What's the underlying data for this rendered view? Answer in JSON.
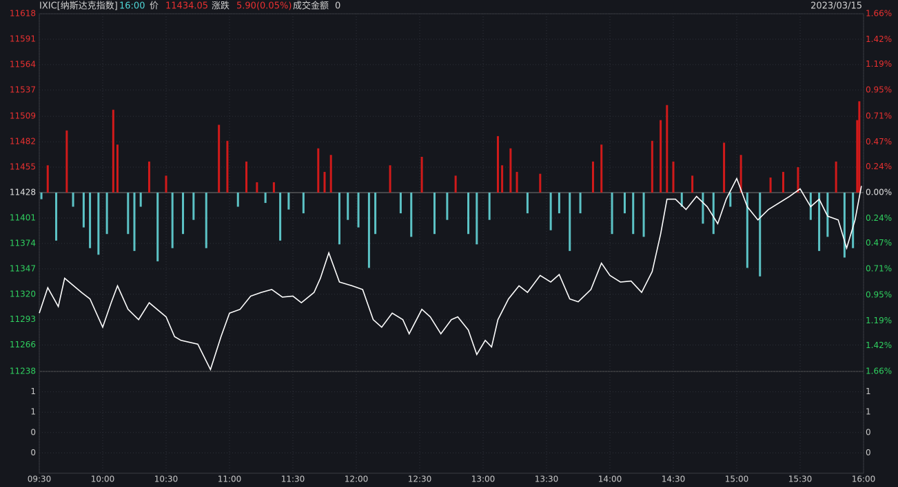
{
  "header": {
    "name": "IXIC[纳斯达克指数]",
    "time": "16:00",
    "price_label": "价",
    "price": "11434.05",
    "change_label": "涨跌",
    "change": "5.90(0.05%)",
    "amount_label": "成交金额",
    "amount": "0",
    "date": "2023/03/15"
  },
  "chart_data": [
    {
      "type": "line",
      "color": "#ffffff",
      "baseline": 11428,
      "grid": true,
      "up_color": "#d11a1a",
      "down_color": "#5cc3c6",
      "xlim": [
        0,
        390
      ],
      "xticks": [
        {
          "value": 0,
          "label": "09:30"
        },
        {
          "value": 30,
          "label": "10:00"
        },
        {
          "value": 60,
          "label": "10:30"
        },
        {
          "value": 90,
          "label": "11:00"
        },
        {
          "value": 120,
          "label": "11:30"
        },
        {
          "value": 150,
          "label": "12:00"
        },
        {
          "value": 180,
          "label": "12:30"
        },
        {
          "value": 210,
          "label": "13:00"
        },
        {
          "value": 240,
          "label": "13:30"
        },
        {
          "value": 270,
          "label": "14:00"
        },
        {
          "value": 300,
          "label": "14:30"
        },
        {
          "value": 330,
          "label": "15:00"
        },
        {
          "value": 360,
          "label": "15:30"
        },
        {
          "value": 390,
          "label": "16:00"
        }
      ],
      "ylim": [
        11238,
        11618
      ],
      "yticks": [
        11618,
        11591,
        11564,
        11537,
        11509,
        11482,
        11455,
        11428,
        11401,
        11374,
        11347,
        11320,
        11293,
        11266,
        11238
      ],
      "y2lim": [
        -1.66,
        1.66
      ],
      "y2ticks": [
        {
          "value": 1.66,
          "label": "1.66%"
        },
        {
          "value": 1.42,
          "label": "1.42%"
        },
        {
          "value": 1.19,
          "label": "1.19%"
        },
        {
          "value": 0.95,
          "label": "0.95%"
        },
        {
          "value": 0.71,
          "label": "0.71%"
        },
        {
          "value": 0.47,
          "label": "0.47%"
        },
        {
          "value": 0.24,
          "label": "0.24%"
        },
        {
          "value": 0,
          "label": "0.00%"
        },
        {
          "value": -0.24,
          "label": "0.24%"
        },
        {
          "value": -0.47,
          "label": "0.47%"
        },
        {
          "value": -0.71,
          "label": "0.71%"
        },
        {
          "value": -0.95,
          "label": "0.95%"
        },
        {
          "value": -1.19,
          "label": "1.19%"
        },
        {
          "value": -1.42,
          "label": "1.42%"
        },
        {
          "value": -1.66,
          "label": "1.66%"
        }
      ],
      "x": [
        0,
        4,
        9,
        12,
        20,
        24,
        30,
        34,
        37,
        42,
        47,
        52,
        60,
        64,
        67,
        75,
        81,
        86,
        90,
        95,
        100,
        105,
        110,
        115,
        120,
        124,
        130,
        133,
        137,
        142,
        148,
        153,
        158,
        162,
        167,
        172,
        175,
        181,
        185,
        190,
        195,
        198,
        203,
        207,
        211,
        214,
        217,
        222,
        227,
        231,
        237,
        242,
        246,
        251,
        255,
        261,
        266,
        270,
        275,
        280,
        285,
        290,
        294,
        297,
        301,
        306,
        311,
        316,
        321,
        325,
        330,
        335,
        340,
        345,
        350,
        355,
        360,
        365,
        369,
        373,
        378,
        382,
        386,
        389
      ],
      "values": [
        11300,
        11327,
        11307,
        11337,
        11322,
        11315,
        11285,
        11311,
        11329,
        11304,
        11293,
        11311,
        11296,
        11275,
        11271,
        11267,
        11240,
        11275,
        11300,
        11304,
        11318,
        11322,
        11325,
        11317,
        11318,
        11311,
        11322,
        11337,
        11364,
        11333,
        11329,
        11325,
        11293,
        11285,
        11300,
        11293,
        11278,
        11304,
        11296,
        11278,
        11293,
        11296,
        11282,
        11256,
        11271,
        11264,
        11293,
        11315,
        11329,
        11322,
        11340,
        11333,
        11341,
        11315,
        11312,
        11325,
        11353,
        11340,
        11333,
        11334,
        11322,
        11344,
        11384,
        11421,
        11421,
        11410,
        11424,
        11413,
        11395,
        11421,
        11443,
        11413,
        11399,
        11410,
        11417,
        11424,
        11432,
        11413,
        11421,
        11403,
        11399,
        11369,
        11399,
        11435
      ],
      "bars": {
        "x": [
          1,
          4,
          8,
          13,
          16,
          21,
          24,
          28,
          32,
          35,
          37,
          42,
          45,
          48,
          52,
          56,
          60,
          63,
          68,
          73,
          79,
          85,
          89,
          94,
          98,
          103,
          107,
          111,
          114,
          118,
          125,
          132,
          135,
          138,
          142,
          146,
          151,
          156,
          159,
          166,
          171,
          176,
          181,
          187,
          193,
          197,
          203,
          207,
          213,
          217,
          219,
          223,
          226,
          231,
          237,
          242,
          246,
          251,
          256,
          262,
          266,
          271,
          277,
          281,
          286,
          290,
          294,
          297,
          300,
          304,
          309,
          314,
          319,
          324,
          327,
          332,
          335,
          341,
          346,
          352,
          359,
          365,
          369,
          373,
          377,
          381,
          385,
          387,
          388
        ],
        "values": [
          11421,
          11457,
          11377,
          11494,
          11413,
          11391,
          11369,
          11362,
          11384,
          11516,
          11479,
          11384,
          11366,
          11413,
          11461,
          11355,
          11446,
          11369,
          11384,
          11399,
          11369,
          11500,
          11483,
          11413,
          11461,
          11439,
          11417,
          11439,
          11377,
          11410,
          11406,
          11475,
          11450,
          11468,
          11373,
          11399,
          11391,
          11348,
          11384,
          11457,
          11406,
          11381,
          11466,
          11384,
          11399,
          11446,
          11384,
          11373,
          11399,
          11488,
          11457,
          11475,
          11450,
          11406,
          11448,
          11388,
          11406,
          11366,
          11406,
          11461,
          11479,
          11384,
          11406,
          11384,
          11381,
          11483,
          11505,
          11521,
          11461,
          11413,
          11446,
          11395,
          11384,
          11481,
          11413,
          11468,
          11348,
          11339,
          11444,
          11450,
          11455,
          11399,
          11366,
          11381,
          11461,
          11359,
          11369,
          11505,
          11525
        ]
      }
    },
    {
      "type": "bar",
      "ylim": [
        0,
        1.5
      ],
      "yticks": [
        {
          "value": 1.2,
          "label": "1"
        },
        {
          "value": 0.9,
          "label": "1"
        },
        {
          "value": 0.6,
          "label": "0"
        },
        {
          "value": 0.3,
          "label": "0"
        }
      ],
      "y2ticks": [
        {
          "value": 1.2,
          "label": "1"
        },
        {
          "value": 0.9,
          "label": "1"
        },
        {
          "value": 0.6,
          "label": "0"
        },
        {
          "value": 0.3,
          "label": "0"
        }
      ]
    }
  ]
}
